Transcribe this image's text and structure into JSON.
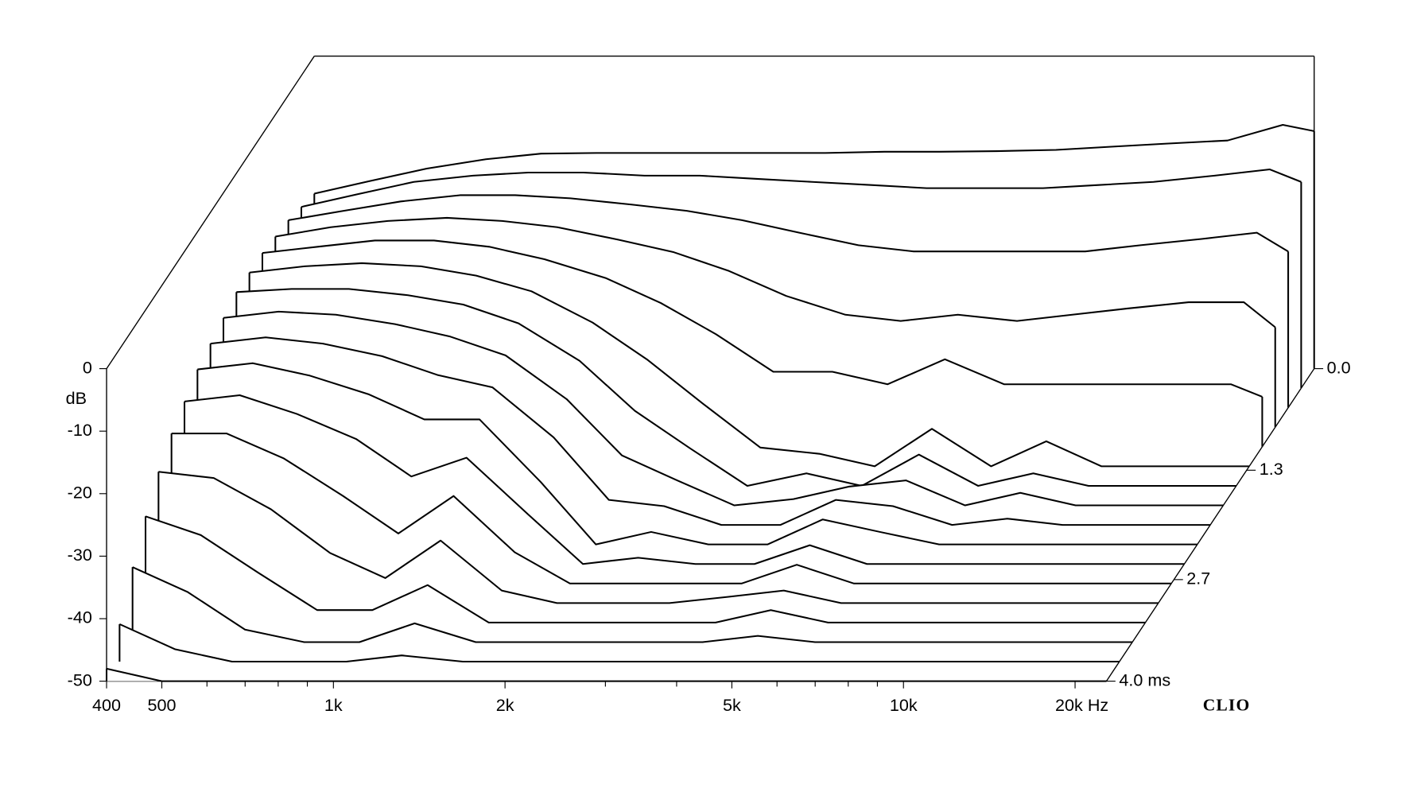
{
  "chart_data": {
    "type": "waterfall",
    "y_label": "dB",
    "brand": "CLIO",
    "xlog": true,
    "xlim": [
      400,
      22700
    ],
    "xticks": [
      400,
      500,
      {
        "value": 1000,
        "label": "1k"
      },
      {
        "value": 2000,
        "label": "2k"
      },
      {
        "value": 5000,
        "label": "5k"
      },
      {
        "value": 10000,
        "label": "10k"
      },
      {
        "value": 20000,
        "label": "20k Hz"
      }
    ],
    "xminorticks": [
      600,
      700,
      800,
      900,
      3000,
      4000,
      6000,
      7000,
      8000,
      9000
    ],
    "ylim": [
      -50,
      0
    ],
    "yticks": [
      0,
      -10,
      -20,
      -30,
      -40,
      -50
    ],
    "tlim": [
      0,
      4
    ],
    "tticks": [
      {
        "value": 0,
        "label": "0.0"
      },
      1.3,
      2.7,
      {
        "value": 4,
        "label": "4.0  ms"
      }
    ],
    "color": "#000000",
    "frequencies": [
      400,
      500,
      630,
      800,
      1000,
      1250,
      1600,
      2000,
      2500,
      3150,
      4000,
      5000,
      6300,
      8000,
      10000,
      12500,
      16000,
      20000,
      22700
    ],
    "slices": [
      {
        "time": 0,
        "values": [
          -22,
          -20,
          -18,
          -16.5,
          -15.6,
          -15.5,
          -15.5,
          -15.5,
          -15.5,
          -15.5,
          -15.3,
          -15.3,
          -15.2,
          -15,
          -14.5,
          -14,
          -13.5,
          -11,
          -12
        ]
      },
      {
        "time": 0.25,
        "values": [
          -21,
          -19,
          -17,
          -16,
          -15.5,
          -15.5,
          -16,
          -16,
          -16.5,
          -17,
          -17.5,
          -18,
          -18,
          -18,
          -17.5,
          -17,
          -16,
          -15,
          -17
        ]
      },
      {
        "time": 0.5,
        "values": [
          -20,
          -18.5,
          -17,
          -16,
          -16,
          -16.5,
          -17.5,
          -18.5,
          -20,
          -22,
          -24,
          -25,
          -25,
          -25,
          -25,
          -24,
          -23,
          -22,
          -25
        ]
      },
      {
        "time": 0.75,
        "values": [
          -19.5,
          -18,
          -17,
          -16.5,
          -17,
          -18,
          -20,
          -22,
          -25,
          -29,
          -32,
          -33,
          -32,
          -33,
          -32,
          -31,
          -30,
          -30,
          -34
        ]
      },
      {
        "time": 1,
        "values": [
          -19,
          -18,
          -17,
          -17,
          -18,
          -20,
          -23,
          -27,
          -32,
          -38,
          -38,
          -40,
          -36,
          -40,
          -40,
          -40,
          -40,
          -40,
          -42
        ]
      },
      {
        "time": 1.25,
        "values": [
          -19,
          -18,
          -17.5,
          -18,
          -19.5,
          -22,
          -27,
          -33,
          -40,
          -47,
          -48,
          -50,
          -44,
          -50,
          -46,
          -50,
          -50,
          -50,
          -50
        ]
      },
      {
        "time": 1.5,
        "values": [
          -19,
          -18.5,
          -18.5,
          -19.5,
          -21,
          -24,
          -30,
          -38,
          -44,
          -50,
          -48,
          -50,
          -45,
          -50,
          -48,
          -50,
          -50,
          -50,
          -50
        ]
      },
      {
        "time": 1.75,
        "values": [
          -20,
          -19,
          -19.5,
          -21,
          -23,
          -26,
          -33,
          -42,
          -46,
          -50,
          -49,
          -47,
          -46,
          -50,
          -48,
          -50,
          -50,
          -50,
          -50
        ]
      },
      {
        "time": 2,
        "values": [
          -21,
          -20,
          -21,
          -23,
          -26,
          -28,
          -36,
          -46,
          -47,
          -50,
          -50,
          -46,
          -47,
          -50,
          -49,
          -50,
          -50,
          -50,
          -50
        ]
      },
      {
        "time": 2.25,
        "values": [
          -22,
          -21,
          -23,
          -26,
          -30,
          -30,
          -40,
          -50,
          -48,
          -50,
          -50,
          -46,
          -48,
          -50,
          -50,
          -50,
          -50,
          -50,
          -50
        ]
      },
      {
        "time": 2.5,
        "values": [
          -24,
          -23,
          -26,
          -30,
          -36,
          -33,
          -42,
          -50,
          -49,
          -50,
          -50,
          -47,
          -50,
          -50,
          -50,
          -50,
          -50,
          -50,
          -50
        ]
      },
      {
        "time": 2.75,
        "values": [
          -26,
          -26,
          -30,
          -36,
          -42,
          -36,
          -45,
          -50,
          -50,
          -50,
          -50,
          -47,
          -50,
          -50,
          -50,
          -50,
          -50,
          -50,
          -50
        ]
      },
      {
        "time": 3,
        "values": [
          -29,
          -30,
          -35,
          -42,
          -46,
          -40,
          -48,
          -50,
          -50,
          -50,
          -49,
          -48,
          -50,
          -50,
          -50,
          -50,
          -50,
          -50,
          -50
        ]
      },
      {
        "time": 3.25,
        "values": [
          -33,
          -36,
          -42,
          -48,
          -48,
          -44,
          -50,
          -50,
          -50,
          -50,
          -50,
          -48,
          -50,
          -50,
          -50,
          -50,
          -50,
          -50,
          -50
        ]
      },
      {
        "time": 3.5,
        "values": [
          -38,
          -42,
          -48,
          -50,
          -50,
          -47,
          -50,
          -50,
          -50,
          -50,
          -50,
          -49,
          -50,
          -50,
          -50,
          -50,
          -50,
          -50,
          -50
        ]
      },
      {
        "time": 3.75,
        "values": [
          -44,
          -48,
          -50,
          -50,
          -50,
          -49,
          -50,
          -50,
          -50,
          -50,
          -50,
          -50,
          -50,
          -50,
          -50,
          -50,
          -50,
          -50,
          -50
        ]
      },
      {
        "time": 4,
        "values": [
          -48,
          -50,
          -50,
          -50,
          -50,
          -50,
          -50,
          -50,
          -50,
          -50,
          -50,
          -50,
          -50,
          -50,
          -50,
          -50,
          -50,
          -50,
          -50
        ]
      }
    ]
  }
}
